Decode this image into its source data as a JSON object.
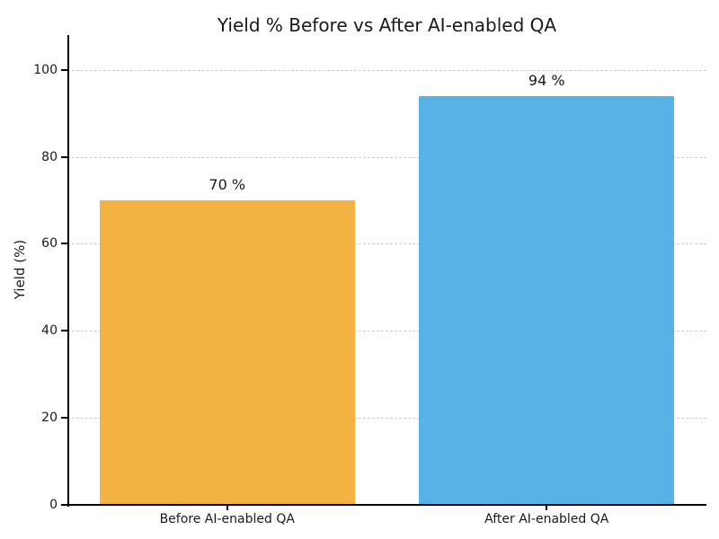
{
  "chart_data": {
    "type": "bar",
    "title": "Yield % Before vs After AI-enabled QA",
    "xlabel": "",
    "ylabel": "Yield (%)",
    "categories": [
      "Before AI-enabled QA",
      "After AI-enabled QA"
    ],
    "values": [
      70,
      94
    ],
    "value_labels": [
      "70 %",
      "94 %"
    ],
    "series": [
      {
        "name": "Yield %",
        "values": [
          70,
          94
        ]
      }
    ],
    "yticks": [
      0,
      20,
      40,
      60,
      80,
      100
    ],
    "ylim": [
      0,
      108
    ],
    "bar_colors": [
      "#F2B343",
      "#57B3E5"
    ],
    "bar_width_fraction": 0.4,
    "grid": "horizontal-dashed",
    "gridline_color": "#cccccc",
    "legend": "none",
    "background_color": "#ffffff"
  }
}
